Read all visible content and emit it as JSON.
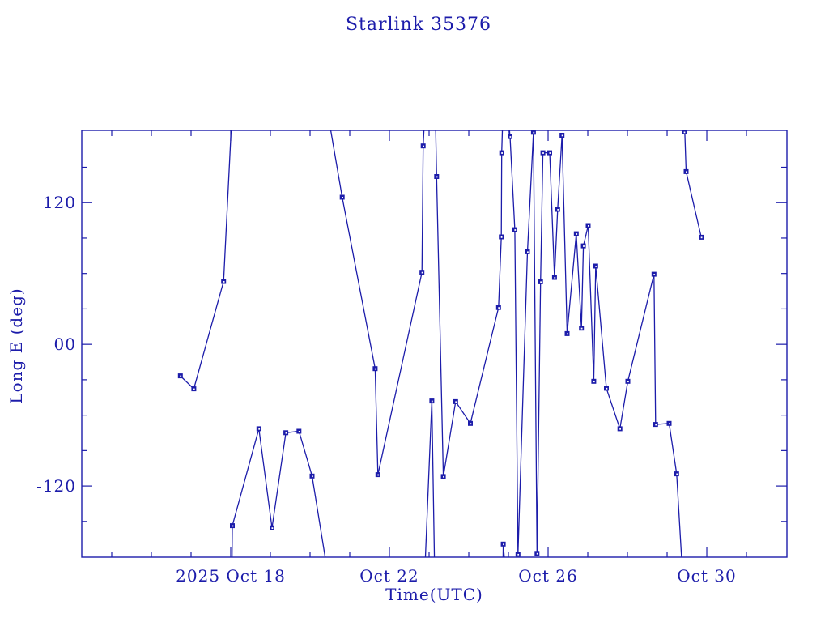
{
  "title": "Starlink 35376",
  "colors": {
    "ink": "#1c1caa",
    "background": "#ffffff"
  },
  "chart_data": {
    "type": "line",
    "title": "Starlink 35376",
    "xlabel": "Time(UTC)",
    "ylabel": "Long E (deg)",
    "x_unit": "day of October 2025 (UTC)",
    "xlim": [
      14.245,
      32.02
    ],
    "ylim": [
      -180.3,
      181.2
    ],
    "grid": false,
    "legend": "none",
    "x_major_ticks": [
      {
        "day": 18,
        "label": "2025 Oct 18"
      },
      {
        "day": 22,
        "label": "Oct 22"
      },
      {
        "day": 26,
        "label": "Oct 26"
      },
      {
        "day": 30,
        "label": "Oct 30"
      }
    ],
    "x_minor_tick_days": [
      15,
      16,
      17,
      19,
      20,
      21,
      23,
      24,
      25,
      27,
      28,
      29,
      31
    ],
    "y_major_ticks": [
      {
        "deg": 120,
        "label": "120"
      },
      {
        "deg": 0,
        "label": "00"
      },
      {
        "deg": -120,
        "label": "-120"
      }
    ],
    "y_minor_tick_degs": [
      150,
      90,
      60,
      30,
      -30,
      -60,
      -90,
      -150
    ],
    "marker": "square",
    "points": [
      [
        16.73,
        -26.7
      ],
      [
        17.07,
        -37.7
      ],
      [
        17.82,
        53.3
      ],
      [
        18.04,
        -153.6
      ],
      [
        18.71,
        -71.5
      ],
      [
        19.04,
        -155.4
      ],
      [
        19.39,
        -74.9
      ],
      [
        19.72,
        -73.6
      ],
      [
        20.05,
        -111.6
      ],
      [
        20.81,
        124.6
      ],
      [
        21.64,
        -20.6
      ],
      [
        21.71,
        -110.4
      ],
      [
        22.82,
        61.0
      ],
      [
        22.85,
        168.0
      ],
      [
        23.07,
        -48.0
      ],
      [
        23.19,
        142.1
      ],
      [
        23.36,
        -112.0
      ],
      [
        23.67,
        -48.5
      ],
      [
        24.04,
        -67.0
      ],
      [
        24.75,
        31.2
      ],
      [
        24.82,
        91.0
      ],
      [
        24.83,
        162.3
      ],
      [
        24.87,
        -169.2
      ],
      [
        25.04,
        176.0
      ],
      [
        25.16,
        97.1
      ],
      [
        25.24,
        -177.8
      ],
      [
        25.48,
        78.4
      ],
      [
        25.63,
        179.6
      ],
      [
        25.72,
        -177.1
      ],
      [
        25.81,
        53.0
      ],
      [
        25.87,
        162.3
      ],
      [
        26.04,
        162.3
      ],
      [
        26.16,
        56.7
      ],
      [
        26.24,
        114.3
      ],
      [
        26.35,
        177.1
      ],
      [
        26.48,
        9.1
      ],
      [
        26.71,
        93.7
      ],
      [
        26.84,
        13.7
      ],
      [
        26.89,
        83.4
      ],
      [
        27.01,
        100.6
      ],
      [
        27.15,
        -31.3
      ],
      [
        27.2,
        66.3
      ],
      [
        27.47,
        -37.2
      ],
      [
        27.81,
        -71.5
      ],
      [
        28.01,
        -31.3
      ],
      [
        28.67,
        59.4
      ],
      [
        28.71,
        -67.9
      ],
      [
        29.05,
        -67.0
      ],
      [
        29.24,
        -109.7
      ],
      [
        29.43,
        179.8
      ],
      [
        29.48,
        146.3
      ],
      [
        29.86,
        90.7
      ]
    ],
    "strokes": [
      [
        [
          16.73,
          -26.7
        ],
        [
          17.07,
          -37.7
        ],
        [
          17.82,
          53.3
        ],
        [
          18.03,
          195
        ]
      ],
      [
        [
          18.03,
          -195
        ],
        [
          18.04,
          -153.6
        ],
        [
          18.71,
          -71.5
        ],
        [
          19.04,
          -155.4
        ],
        [
          19.39,
          -74.9
        ],
        [
          19.72,
          -73.6
        ],
        [
          20.05,
          -111.6
        ],
        [
          20.45,
          -195
        ]
      ],
      [
        [
          20.45,
          195
        ],
        [
          20.81,
          124.6
        ],
        [
          21.64,
          -20.6
        ],
        [
          21.71,
          -110.4
        ],
        [
          22.82,
          61.0
        ],
        [
          22.85,
          168.0
        ],
        [
          22.89,
          195
        ]
      ],
      [
        [
          22.89,
          -195
        ],
        [
          23.07,
          -48.0
        ],
        [
          23.14,
          -195
        ]
      ],
      [
        [
          23.16,
          195
        ],
        [
          23.19,
          142.1
        ],
        [
          23.36,
          -112.0
        ],
        [
          23.67,
          -48.5
        ],
        [
          24.04,
          -67.0
        ],
        [
          24.75,
          31.2
        ],
        [
          24.82,
          91.0
        ],
        [
          24.83,
          162.3
        ],
        [
          24.86,
          195
        ]
      ],
      [
        [
          24.86,
          -195
        ],
        [
          24.87,
          -169.2
        ],
        [
          24.93,
          -195
        ]
      ],
      [
        [
          24.99,
          195
        ],
        [
          25.04,
          176.0
        ],
        [
          25.16,
          97.1
        ],
        [
          25.24,
          -177.8
        ],
        [
          25.48,
          78.4
        ],
        [
          25.63,
          179.6
        ],
        [
          25.72,
          -177.1
        ],
        [
          25.81,
          53.0
        ],
        [
          25.87,
          162.3
        ],
        [
          26.04,
          162.3
        ],
        [
          26.16,
          56.7
        ],
        [
          26.24,
          114.3
        ],
        [
          26.35,
          177.1
        ],
        [
          26.48,
          9.1
        ],
        [
          26.71,
          93.7
        ],
        [
          26.84,
          13.7
        ],
        [
          26.89,
          83.4
        ],
        [
          27.01,
          100.6
        ],
        [
          27.15,
          -31.3
        ],
        [
          27.2,
          66.3
        ],
        [
          27.47,
          -37.2
        ],
        [
          27.81,
          -71.5
        ],
        [
          28.01,
          -31.3
        ],
        [
          28.67,
          59.4
        ],
        [
          28.71,
          -67.9
        ],
        [
          29.05,
          -67.0
        ],
        [
          29.24,
          -109.7
        ],
        [
          29.39,
          -195
        ]
      ],
      [
        [
          29.43,
          195
        ],
        [
          29.48,
          146.3
        ],
        [
          29.86,
          90.7
        ]
      ]
    ]
  }
}
